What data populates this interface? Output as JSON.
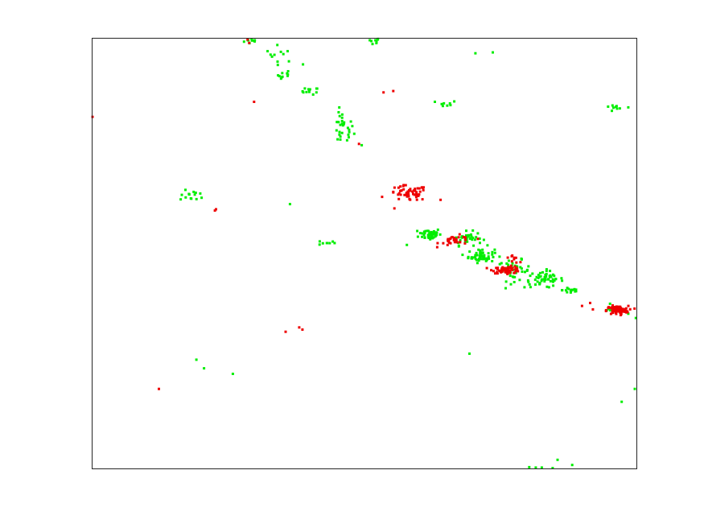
{
  "chart_data": {
    "type": "scatter",
    "title": "",
    "xlabel": "",
    "ylabel": "",
    "xlim": [
      0,
      1
    ],
    "ylim": [
      0,
      1
    ],
    "grid": false,
    "axis_ticks": false,
    "series": [
      {
        "color": "#00ee00",
        "clusters": [
          {
            "cx": 0.295,
            "cy": 0.995,
            "sx": 0.008,
            "sy": 0.004,
            "n": 10
          },
          {
            "cx": 0.515,
            "cy": 0.993,
            "sx": 0.008,
            "sy": 0.005,
            "n": 8
          },
          {
            "cx": 0.345,
            "cy": 0.965,
            "sx": 0.014,
            "sy": 0.01,
            "n": 10
          },
          {
            "cx": 0.355,
            "cy": 0.915,
            "sx": 0.007,
            "sy": 0.006,
            "n": 10
          },
          {
            "cx": 0.4,
            "cy": 0.878,
            "sx": 0.008,
            "sy": 0.004,
            "n": 12
          },
          {
            "cx": 0.65,
            "cy": 0.848,
            "sx": 0.01,
            "sy": 0.004,
            "n": 8
          },
          {
            "cx": 0.955,
            "cy": 0.838,
            "sx": 0.01,
            "sy": 0.004,
            "n": 8
          },
          {
            "cx": 0.46,
            "cy": 0.79,
            "sx": 0.01,
            "sy": 0.02,
            "n": 30
          },
          {
            "cx": 0.185,
            "cy": 0.635,
            "sx": 0.012,
            "sy": 0.006,
            "n": 14
          },
          {
            "cx": 0.43,
            "cy": 0.525,
            "sx": 0.008,
            "sy": 0.003,
            "n": 8
          },
          {
            "cx": 0.62,
            "cy": 0.545,
            "sx": 0.01,
            "sy": 0.007,
            "n": 45
          },
          {
            "cx": 0.688,
            "cy": 0.535,
            "sx": 0.014,
            "sy": 0.008,
            "n": 40
          },
          {
            "cx": 0.715,
            "cy": 0.495,
            "sx": 0.012,
            "sy": 0.008,
            "n": 55
          },
          {
            "cx": 0.775,
            "cy": 0.46,
            "sx": 0.015,
            "sy": 0.012,
            "n": 40
          },
          {
            "cx": 0.83,
            "cy": 0.44,
            "sx": 0.018,
            "sy": 0.01,
            "n": 55
          },
          {
            "cx": 0.88,
            "cy": 0.415,
            "sx": 0.008,
            "sy": 0.005,
            "n": 14
          },
          {
            "cx": 0.955,
            "cy": 0.37,
            "sx": 0.008,
            "sy": 0.004,
            "n": 8
          }
        ],
        "points": [
          [
            0.704,
            0.966
          ],
          [
            0.736,
            0.968
          ],
          [
            0.985,
            0.84
          ],
          [
            0.363,
            0.615
          ],
          [
            0.191,
            0.253
          ],
          [
            0.205,
            0.233
          ],
          [
            0.258,
            0.22
          ],
          [
            0.578,
            0.52
          ],
          [
            0.693,
            0.267
          ],
          [
            0.973,
            0.155
          ],
          [
            0.997,
            0.185
          ],
          [
            0.999,
            0.35
          ],
          [
            0.985,
            0.36
          ],
          [
            0.803,
            0.003
          ],
          [
            0.855,
            0.02
          ],
          [
            0.882,
            0.008
          ],
          [
            0.826,
            0.002
          ],
          [
            0.815,
            0.002
          ],
          [
            0.846,
            0.001
          ],
          [
            0.33,
            0.958
          ],
          [
            0.387,
            0.94
          ],
          [
            0.495,
            0.752
          ]
        ]
      },
      {
        "color": "#ee0000",
        "clusters": [
          {
            "cx": 0.58,
            "cy": 0.64,
            "sx": 0.018,
            "sy": 0.009,
            "n": 55
          },
          {
            "cx": 0.67,
            "cy": 0.53,
            "sx": 0.016,
            "sy": 0.006,
            "n": 32
          },
          {
            "cx": 0.762,
            "cy": 0.462,
            "sx": 0.013,
            "sy": 0.004,
            "n": 60
          },
          {
            "cx": 0.775,
            "cy": 0.49,
            "sx": 0.005,
            "sy": 0.006,
            "n": 10
          },
          {
            "cx": 0.965,
            "cy": 0.368,
            "sx": 0.01,
            "sy": 0.005,
            "n": 85
          }
        ],
        "points": [
          [
            0.285,
            0.998
          ],
          [
            0.288,
            0.99
          ],
          [
            0.0,
            0.818
          ],
          [
            0.297,
            0.853
          ],
          [
            0.535,
            0.875
          ],
          [
            0.553,
            0.878
          ],
          [
            0.225,
            0.6
          ],
          [
            0.227,
            0.603
          ],
          [
            0.355,
            0.318
          ],
          [
            0.38,
            0.328
          ],
          [
            0.386,
            0.323
          ],
          [
            0.122,
            0.185
          ],
          [
            0.49,
            0.755
          ],
          [
            0.9,
            0.378
          ],
          [
            0.915,
            0.385
          ],
          [
            0.92,
            0.37
          ],
          [
            0.64,
            0.625
          ],
          [
            0.555,
            0.605
          ]
        ]
      }
    ]
  }
}
